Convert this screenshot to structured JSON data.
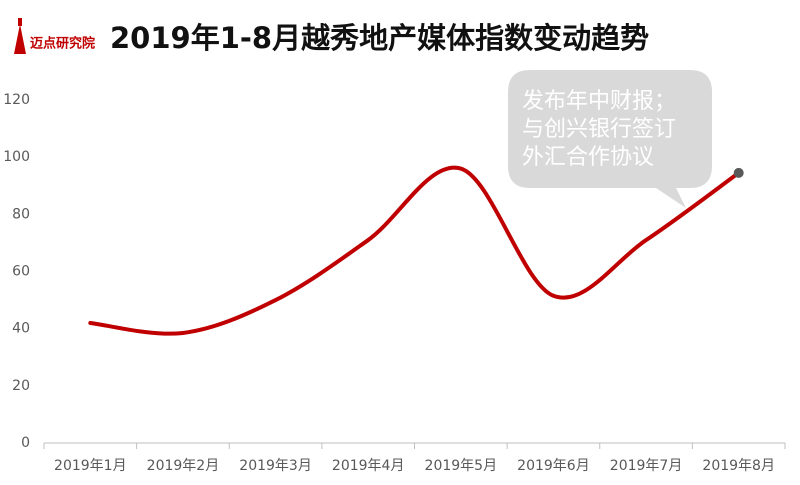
{
  "brand": "迈点研究院",
  "chart_data": {
    "type": "line",
    "title": "2019年1-8月越秀地产媒体指数变动趋势",
    "categories": [
      "2019年1月",
      "2019年2月",
      "2019年3月",
      "2019年4月",
      "2019年5月",
      "2019年6月",
      "2019年7月",
      "2019年8月"
    ],
    "values": [
      42,
      38.5,
      50,
      71,
      96,
      51.5,
      71,
      94.5
    ],
    "color": "#c00000",
    "marker_color": "#595959",
    "ylim": [
      0,
      120
    ],
    "yticks": [
      0,
      20,
      40,
      60,
      80,
      100,
      120
    ],
    "grid": false,
    "annotation": [
      "发布年中财报；",
      "与创兴银行签订",
      "外汇合作协议"
    ]
  }
}
